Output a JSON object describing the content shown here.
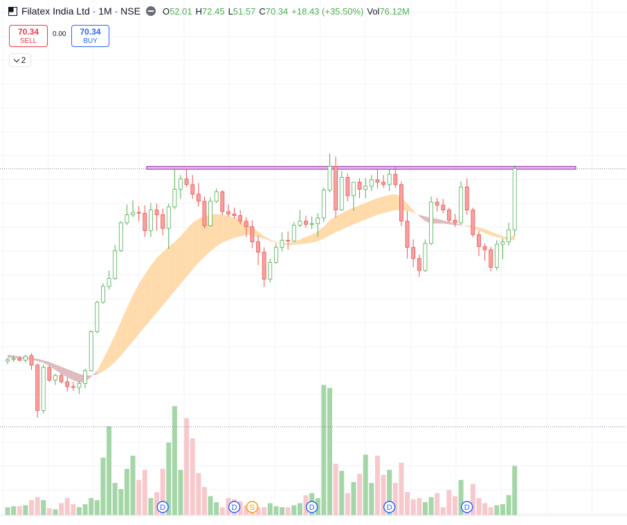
{
  "symbol": {
    "name": "Filatex India Ltd",
    "interval": "1M",
    "exchange": "NSE",
    "title": "Filatex India Ltd · 1M · NSE",
    "logo_icon": "symbol-logo-icon"
  },
  "ohlc": {
    "open_label": "O",
    "open": "52.01",
    "high_label": "H",
    "high": "72.45",
    "low_label": "L",
    "low": "51.57",
    "close_label": "C",
    "close": "70.34",
    "change": "+18.43 (+35.50%)",
    "vol_label": "Vol",
    "vol": "76.12M"
  },
  "trade": {
    "sell_price": "70.34",
    "sell_label": "SELL",
    "spread": "0.00",
    "buy_price": "70.34",
    "buy_label": "BUY"
  },
  "studies": {
    "count": "2"
  },
  "colors": {
    "up": "#26a69a",
    "up_body": "#ffffff",
    "up_border": "#4caf50",
    "down": "#ef5350",
    "down_body": "#f7a1a1",
    "vol_up": "#a5d6a7",
    "vol_down": "#f8c9cc",
    "band_bull": "#ffd59e",
    "band_bear": "#d9b0b3",
    "resistance_line": "#9c27b0",
    "resistance_fill": "#e1bee7",
    "dividend_marker": "#2962ff",
    "split_marker": "#ff9800"
  },
  "chart_data": {
    "type": "candlestick",
    "series": [
      {
        "name": "price",
        "ohlc": [
          [
            8.6,
            9.0,
            8.2,
            8.8
          ],
          [
            8.8,
            9.3,
            8.5,
            8.9
          ],
          [
            8.9,
            9.2,
            8.6,
            8.7
          ],
          [
            8.7,
            9.4,
            8.4,
            9.2
          ],
          [
            9.3,
            9.6,
            7.5,
            8.1
          ],
          [
            8.1,
            8.3,
            1.5,
            2.4
          ],
          [
            2.4,
            8.2,
            2.0,
            7.8
          ],
          [
            7.8,
            8.1,
            6.0,
            6.2
          ],
          [
            6.2,
            7.0,
            5.6,
            6.8
          ],
          [
            6.8,
            7.1,
            5.8,
            6.0
          ],
          [
            6.0,
            6.6,
            4.8,
            5.4
          ],
          [
            5.4,
            6.0,
            4.9,
            5.3
          ],
          [
            5.3,
            6.1,
            4.5,
            5.8
          ],
          [
            5.8,
            7.6,
            5.2,
            7.4
          ],
          [
            7.4,
            12.5,
            7.3,
            12.3
          ],
          [
            12.3,
            16.2,
            12.1,
            16.0
          ],
          [
            16.0,
            18.4,
            15.8,
            18.0
          ],
          [
            18.0,
            20.0,
            17.6,
            19.0
          ],
          [
            19.0,
            23.2,
            18.8,
            22.5
          ],
          [
            22.5,
            26.2,
            22.3,
            26.0
          ],
          [
            26.0,
            28.3,
            25.7,
            27.0
          ],
          [
            27.0,
            28.8,
            26.7,
            27.3
          ],
          [
            27.3,
            28.1,
            26.2,
            27.2
          ],
          [
            27.2,
            28.2,
            24.2,
            25.0
          ],
          [
            25.0,
            28.5,
            24.2,
            27.6
          ],
          [
            27.6,
            28.4,
            25.0,
            27.0
          ],
          [
            27.0,
            27.8,
            24.4,
            25.3
          ],
          [
            25.3,
            28.4,
            22.7,
            28.0
          ],
          [
            28.0,
            32.7,
            27.7,
            30.2
          ],
          [
            30.2,
            32.0,
            29.0,
            31.5
          ],
          [
            31.5,
            32.7,
            30.5,
            30.8
          ],
          [
            30.8,
            32.0,
            29.0,
            29.6
          ],
          [
            29.6,
            31.0,
            28.0,
            28.7
          ],
          [
            28.7,
            29.3,
            25.3,
            25.6
          ],
          [
            25.6,
            29.2,
            25.5,
            28.7
          ],
          [
            28.7,
            30.3,
            28.5,
            29.9
          ],
          [
            29.9,
            30.1,
            27.0,
            27.4
          ],
          [
            27.4,
            28.3,
            26.8,
            27.1
          ],
          [
            27.1,
            27.9,
            26.5,
            26.9
          ],
          [
            26.9,
            27.6,
            25.8,
            26.2
          ],
          [
            26.2,
            26.7,
            24.2,
            25.5
          ],
          [
            25.5,
            26.3,
            22.8,
            23.6
          ],
          [
            23.6,
            24.4,
            20.7,
            22.3
          ],
          [
            22.3,
            22.9,
            17.9,
            18.9
          ],
          [
            18.9,
            21.5,
            18.5,
            21.0
          ],
          [
            21.0,
            23.4,
            20.8,
            22.9
          ],
          [
            22.9,
            24.8,
            22.4,
            23.8
          ],
          [
            23.8,
            24.9,
            22.6,
            23.7
          ],
          [
            23.7,
            26.1,
            23.6,
            25.7
          ],
          [
            25.7,
            27.6,
            25.4,
            26.2
          ],
          [
            26.2,
            26.9,
            25.4,
            25.8
          ],
          [
            25.8,
            26.8,
            25.2,
            25.9
          ],
          [
            25.9,
            27.2,
            24.2,
            26.6
          ],
          [
            26.6,
            30.4,
            26.1,
            30.1
          ],
          [
            30.1,
            34.7,
            29.8,
            33.1
          ],
          [
            33.1,
            34.3,
            26.6,
            27.6
          ],
          [
            27.6,
            32.5,
            27.5,
            31.7
          ],
          [
            31.7,
            32.2,
            28.7,
            29.4
          ],
          [
            29.4,
            31.1,
            27.5,
            31.1
          ],
          [
            31.1,
            31.6,
            29.1,
            30.2
          ],
          [
            30.2,
            31.6,
            29.1,
            30.6
          ],
          [
            30.6,
            32.0,
            30.0,
            31.4
          ],
          [
            31.4,
            32.8,
            30.3,
            31.1
          ],
          [
            31.1,
            32.0,
            30.4,
            30.8
          ],
          [
            30.8,
            32.7,
            30.0,
            32.1
          ],
          [
            32.1,
            33.0,
            30.4,
            30.8
          ],
          [
            30.8,
            31.2,
            25.6,
            26.2
          ],
          [
            26.2,
            27.5,
            21.5,
            22.9
          ],
          [
            22.9,
            23.9,
            20.4,
            21.5
          ],
          [
            21.5,
            22.0,
            19.2,
            20.0
          ],
          [
            20.0,
            23.9,
            19.8,
            23.4
          ],
          [
            23.4,
            29.3,
            23.2,
            28.6
          ],
          [
            28.6,
            29.1,
            27.4,
            28.2
          ],
          [
            28.2,
            29.0,
            27.2,
            27.6
          ],
          [
            27.6,
            27.9,
            26.0,
            26.3
          ],
          [
            26.3,
            27.1,
            25.5,
            26.0
          ],
          [
            26.0,
            31.2,
            25.8,
            30.5
          ],
          [
            30.5,
            31.6,
            27.0,
            27.6
          ],
          [
            27.6,
            27.9,
            24.2,
            24.5
          ],
          [
            24.5,
            25.0,
            21.8,
            23.0
          ],
          [
            23.0,
            23.4,
            21.2,
            22.6
          ],
          [
            22.6,
            23.0,
            19.9,
            20.4
          ],
          [
            20.4,
            23.8,
            20.0,
            23.3
          ],
          [
            23.3,
            24.0,
            21.4,
            23.6
          ],
          [
            23.6,
            26.0,
            23.1,
            25.1
          ],
          [
            25.1,
            33.2,
            24.3,
            32.8
          ]
        ]
      },
      {
        "name": "volume",
        "values": [
          0.8,
          0.9,
          0.9,
          1.0,
          1.5,
          1.8,
          1.5,
          0.7,
          0.6,
          1.2,
          1.7,
          1.1,
          0.8,
          1.1,
          1.7,
          1.5,
          5.7,
          8.8,
          3.2,
          2.6,
          4.6,
          5.9,
          3.5,
          4.5,
          1.7,
          2.3,
          4.6,
          7.2,
          10.8,
          4.5,
          9.6,
          7.6,
          4.2,
          2.8,
          1.9,
          1.3,
          0.8,
          1.7,
          1.6,
          1.4,
          1.0,
          0.8,
          0.8,
          0.8,
          1.2,
          0.9,
          0.8,
          0.8,
          1.0,
          1.2,
          2.0,
          2.2,
          1.7,
          12.9,
          12.6,
          5.1,
          4.4,
          2.2,
          3.3,
          4.1,
          6.0,
          3.2,
          5.9,
          4.0,
          4.5,
          3.2,
          5.2,
          2.3,
          1.6,
          1.7,
          1.3,
          1.8,
          2.2,
          0.8,
          2.5,
          1.9,
          3.5,
          1.4,
          3.1,
          1.7,
          1.2,
          0.8,
          1.0,
          1.1,
          2.0,
          4.9
        ]
      },
      {
        "name": "ema_fast",
        "values": [
          9.0,
          9.0,
          8.9,
          8.9,
          8.8,
          8.6,
          8.4,
          8.0,
          7.5,
          7.0,
          6.6,
          6.2,
          5.9,
          6.0,
          6.6,
          7.4,
          8.8,
          10.3,
          11.9,
          13.6,
          15.3,
          16.9,
          18.3,
          19.5,
          20.6,
          21.6,
          22.3,
          23.0,
          23.6,
          24.3,
          25.2,
          26.0,
          26.5,
          26.8,
          27.0,
          27.1,
          27.0,
          26.9,
          26.6,
          26.3,
          25.9,
          25.4,
          24.9,
          24.3,
          23.9,
          23.6,
          23.4,
          23.4,
          23.6,
          23.9,
          24.2,
          24.5,
          24.9,
          25.5,
          26.3,
          26.8,
          27.2,
          27.6,
          27.9,
          28.2,
          28.5,
          28.8,
          29.1,
          29.3,
          29.5,
          29.6,
          29.3,
          28.4,
          27.6,
          26.8,
          26.2,
          25.9,
          25.9,
          25.9,
          25.8,
          25.7,
          25.7,
          25.7,
          25.6,
          25.4,
          25.2,
          24.9,
          24.6,
          24.3,
          24.1,
          24.5
        ]
      },
      {
        "name": "ema_slow",
        "values": [
          9.4,
          9.3,
          9.2,
          9.1,
          9.0,
          8.9,
          8.7,
          8.5,
          8.2,
          7.9,
          7.6,
          7.3,
          7.0,
          6.8,
          6.8,
          6.9,
          7.3,
          7.8,
          8.5,
          9.3,
          10.2,
          11.1,
          12.0,
          12.9,
          13.8,
          14.7,
          15.6,
          16.5,
          17.4,
          18.3,
          19.2,
          20.1,
          21.0,
          21.7,
          22.4,
          23.0,
          23.5,
          23.8,
          24.1,
          24.3,
          24.5,
          24.4,
          24.2,
          24.0,
          23.7,
          23.5,
          23.3,
          23.2,
          23.2,
          23.3,
          23.4,
          23.5,
          23.7,
          24.0,
          24.4,
          24.8,
          25.1,
          25.5,
          25.8,
          26.1,
          26.4,
          26.7,
          27.0,
          27.2,
          27.4,
          27.6,
          27.6,
          27.5,
          27.3,
          27.0,
          26.8,
          26.6,
          26.5,
          26.3,
          26.1,
          25.9,
          25.8,
          25.6,
          25.3,
          25.0,
          24.7,
          24.4,
          24.2,
          24.0,
          23.8,
          23.8
        ]
      }
    ],
    "resistance_level": 32.9,
    "crosshair_level": 33.4,
    "ylim": [
      0,
      54
    ],
    "volume_max": 13,
    "markers": [
      {
        "bar": 26,
        "label": "D",
        "kind": "dividend"
      },
      {
        "bar": 38,
        "label": "D",
        "kind": "dividend"
      },
      {
        "bar": 41,
        "label": "S",
        "kind": "split"
      },
      {
        "bar": 51,
        "label": "D",
        "kind": "dividend"
      },
      {
        "bar": 64,
        "label": "D",
        "kind": "dividend"
      },
      {
        "bar": 77,
        "label": "D",
        "kind": "dividend"
      }
    ],
    "grid": true
  }
}
